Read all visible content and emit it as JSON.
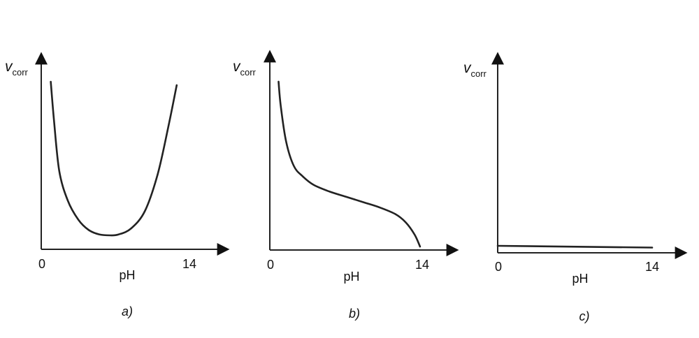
{
  "chart_data": [
    {
      "type": "line",
      "panel_label": "a)",
      "ylabel": "v",
      "ylabel_subscript": "corr",
      "xlabel": "pH",
      "x_ticks": [
        "0",
        "14"
      ],
      "xlim": [
        0,
        14
      ],
      "ylim": [
        0,
        100
      ],
      "series": [
        {
          "x": [
            0.9,
            1.2,
            1.7,
            2.5,
            3.5,
            4.5,
            5.5,
            6.5,
            7.3,
            8.5,
            9.8,
            11.0,
            12.0,
            12.8
          ],
          "values": [
            96,
            74,
            45,
            28,
            17,
            11,
            8.5,
            8,
            8.5,
            12,
            22,
            43,
            70,
            94
          ]
        }
      ]
    },
    {
      "type": "line",
      "panel_label": "b)",
      "ylabel": "v",
      "ylabel_subscript": "corr",
      "xlabel": "pH",
      "x_ticks": [
        "0",
        "14"
      ],
      "xlim": [
        0,
        14
      ],
      "ylim": [
        0,
        100
      ],
      "series": [
        {
          "x": [
            0.8,
            1.0,
            1.5,
            2.2,
            3.0,
            4.0,
            5.5,
            7.0,
            8.5,
            10.0,
            11.5,
            12.5,
            13.3,
            13.8
          ],
          "values": [
            98,
            84,
            63,
            49,
            43,
            38,
            34,
            31,
            28,
            25,
            21,
            16,
            9,
            2
          ]
        }
      ]
    },
    {
      "type": "line",
      "panel_label": "c)",
      "ylabel": "v",
      "ylabel_subscript": "corr",
      "xlabel": "pH",
      "x_ticks": [
        "0",
        "14"
      ],
      "xlim": [
        0,
        14
      ],
      "ylim": [
        0,
        100
      ],
      "series": [
        {
          "x": [
            0,
            14
          ],
          "values": [
            4,
            3
          ]
        }
      ]
    }
  ]
}
